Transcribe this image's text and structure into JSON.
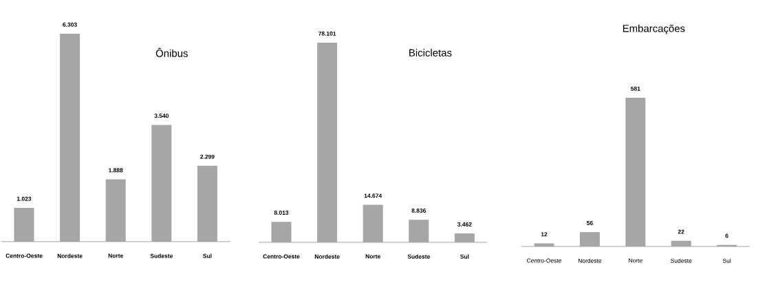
{
  "chart_data": [
    {
      "type": "bar",
      "title": "Ônibus",
      "categories": [
        "Centro-Oeste",
        "Nordeste",
        "Norte",
        "Sudeste",
        "Sul"
      ],
      "values": [
        1023,
        6303,
        1888,
        3540,
        2299
      ],
      "value_labels": [
        "1.023",
        "6.303",
        "1.888",
        "3.540",
        "2.299"
      ],
      "color": "#a6a6a6"
    },
    {
      "type": "bar",
      "title": "Bicicletas",
      "categories": [
        "Centro-Oeste",
        "Nordeste",
        "Norte",
        "Sudeste",
        "Sul"
      ],
      "values": [
        8013,
        78101,
        14674,
        8836,
        3462
      ],
      "value_labels": [
        "8.013",
        "78.101",
        "14.674",
        "8.836",
        "3.462"
      ],
      "color": "#a6a6a6"
    },
    {
      "type": "bar",
      "title": "Embarcações",
      "categories": [
        "Centro-Oeste",
        "Nordeste",
        "Norte",
        "Sudeste",
        "Sul"
      ],
      "values": [
        12,
        56,
        581,
        22,
        6
      ],
      "value_labels": [
        "12",
        "56",
        "581",
        "22",
        "6"
      ],
      "color": "#a6a6a6"
    }
  ]
}
